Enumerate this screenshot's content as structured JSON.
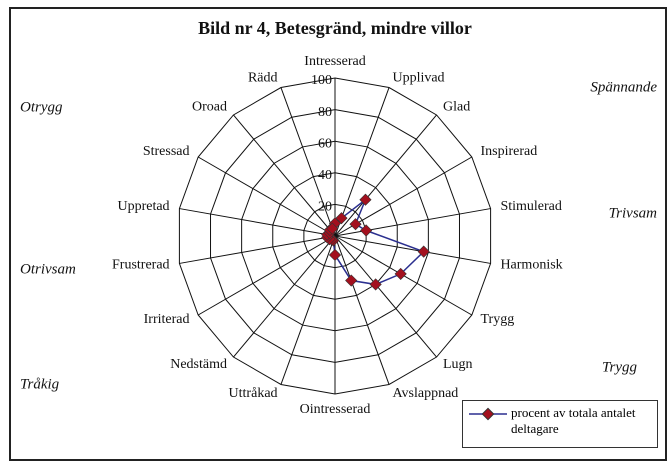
{
  "chart_data": {
    "type": "radar",
    "title": "Bild nr 4, Betesgränd, mindre villor",
    "categories": [
      "Intresserad",
      "Upplivad",
      "Glad",
      "Inspirerad",
      "Stimulerad",
      "Harmonisk",
      "Trygg",
      "Lugn",
      "Avslappnad",
      "Ointresserad",
      "Uttråkad",
      "Nedstämd",
      "Irriterad",
      "Frustrerad",
      "Uppretad",
      "Stressad",
      "Oroad",
      "Rädd"
    ],
    "series": [
      {
        "name": "procent av totala antalet deltagare",
        "color": "#2b2f8f",
        "marker_color": "#a3101e",
        "values": [
          8,
          12,
          30,
          15,
          20,
          57,
          48,
          40,
          30,
          12,
          3,
          3,
          4,
          5,
          5,
          4,
          5,
          5
        ]
      }
    ],
    "ylim": [
      0,
      100
    ],
    "yticks": [
      20,
      40,
      60,
      80,
      100
    ],
    "grid": true,
    "annotations": [
      "Otrygg",
      "Spännande",
      "Trivsam",
      "Otrivsam",
      "Tråkig",
      "Trygg"
    ],
    "legend": "lower right"
  }
}
